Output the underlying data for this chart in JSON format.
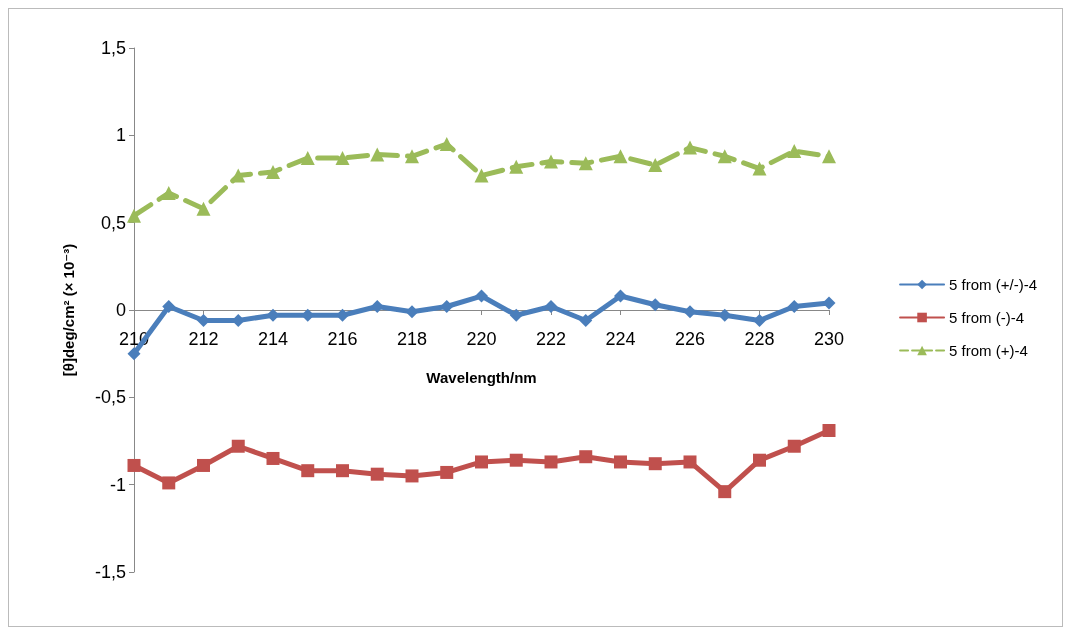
{
  "chart_data": {
    "type": "line",
    "xlabel": "Wavelength/nm",
    "ylabel": "[θ]deg/cm² (× 10⁻³)",
    "x": [
      210,
      211,
      212,
      213,
      214,
      215,
      216,
      217,
      218,
      219,
      220,
      221,
      222,
      223,
      224,
      225,
      226,
      227,
      228,
      229,
      230
    ],
    "series": [
      {
        "name": "5 from (+/-)-4",
        "color": "#4a7ebb",
        "marker": "diamond",
        "line_style": "solid",
        "values": [
          -0.25,
          0.02,
          -0.06,
          -0.06,
          -0.03,
          -0.03,
          -0.03,
          0.02,
          -0.01,
          0.02,
          0.08,
          -0.03,
          0.02,
          -0.06,
          0.08,
          0.03,
          -0.01,
          -0.03,
          -0.06,
          0.02,
          0.04
        ]
      },
      {
        "name": "5 from (-)-4",
        "color": "#c0504d",
        "marker": "square",
        "line_style": "solid",
        "values": [
          -0.89,
          -0.99,
          -0.89,
          -0.78,
          -0.85,
          -0.92,
          -0.92,
          -0.94,
          -0.95,
          -0.93,
          -0.87,
          -0.86,
          -0.87,
          -0.84,
          -0.87,
          -0.88,
          -0.87,
          -1.04,
          -0.86,
          -0.78,
          -0.69
        ]
      },
      {
        "name": "5 from (+)-4",
        "color": "#9bbb59",
        "marker": "triangle",
        "line_style": "dashed",
        "values": [
          0.54,
          0.67,
          0.58,
          0.77,
          0.79,
          0.87,
          0.87,
          0.89,
          0.88,
          0.95,
          0.77,
          0.82,
          0.85,
          0.84,
          0.88,
          0.83,
          0.93,
          0.88,
          0.81,
          0.91,
          0.88
        ]
      }
    ],
    "xlim": [
      210,
      230
    ],
    "xticks": [
      210,
      212,
      214,
      216,
      218,
      220,
      222,
      224,
      226,
      228,
      230
    ],
    "ylim": [
      -1.5,
      1.5
    ],
    "yticks": [
      {
        "value": -1.5,
        "label": "-1,5"
      },
      {
        "value": -1,
        "label": "-1"
      },
      {
        "value": -0.5,
        "label": "-0,5"
      },
      {
        "value": 0,
        "label": "0"
      },
      {
        "value": 0.5,
        "label": "0,5"
      },
      {
        "value": 1,
        "label": "1"
      },
      {
        "value": 1.5,
        "label": "1,5"
      }
    ],
    "grid": false,
    "legend": "right"
  }
}
